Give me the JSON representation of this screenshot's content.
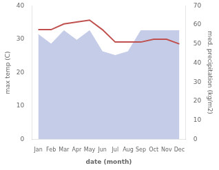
{
  "chart_data": {
    "type": "line",
    "categories": [
      "Jan",
      "Feb",
      "Mar",
      "Apr",
      "May",
      "Jun",
      "Jul",
      "Aug",
      "Sep",
      "Oct",
      "Nov",
      "Dec"
    ],
    "series": [
      {
        "type": "area",
        "color": "#c5cce8",
        "axis": "y2",
        "values": [
          55,
          50,
          57,
          52,
          57,
          46,
          44,
          46,
          57,
          57,
          57,
          57
        ]
      },
      {
        "type": "line",
        "color": "#c0504d",
        "axis": "y2",
        "values": [
          57.5,
          57.5,
          60.5,
          61.5,
          62.5,
          57.5,
          51.0,
          51.0,
          51.0,
          52.5,
          52.5,
          50.0
        ]
      }
    ],
    "xlabel": "date (month)",
    "ylabel": "max temp (C)",
    "y2label": "med. precipitation (kg/m2)",
    "ylim": [
      0,
      40
    ],
    "yticks": [
      0,
      10,
      20,
      30,
      40
    ],
    "y2lim": [
      0,
      70
    ],
    "y2ticks": [
      0,
      10,
      20,
      30,
      40,
      50,
      60,
      70
    ],
    "grid": false
  }
}
